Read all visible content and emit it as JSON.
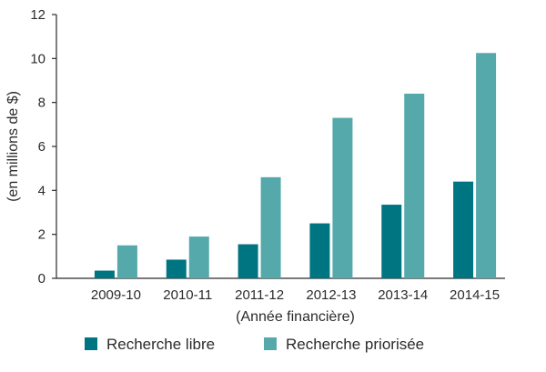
{
  "chart_data": {
    "type": "bar",
    "title": "",
    "xlabel": "(Année financière)",
    "ylabel": "(en millions de $)",
    "categories": [
      "2009-10",
      "2010-11",
      "2011-12",
      "2012-13",
      "2013-14",
      "2014-15"
    ],
    "series": [
      {
        "name": "Recherche libre",
        "color": "#007582",
        "values": [
          0.35,
          0.85,
          1.55,
          2.5,
          3.35,
          4.4
        ]
      },
      {
        "name": "Recherche priorisée",
        "color": "#55a9aa",
        "values": [
          1.5,
          1.9,
          4.6,
          7.3,
          8.4,
          10.25
        ]
      }
    ],
    "ylim": [
      0,
      12
    ],
    "yticks": [
      0,
      2,
      4,
      6,
      8,
      10,
      12
    ],
    "grid": false,
    "legend_position": "bottom"
  }
}
